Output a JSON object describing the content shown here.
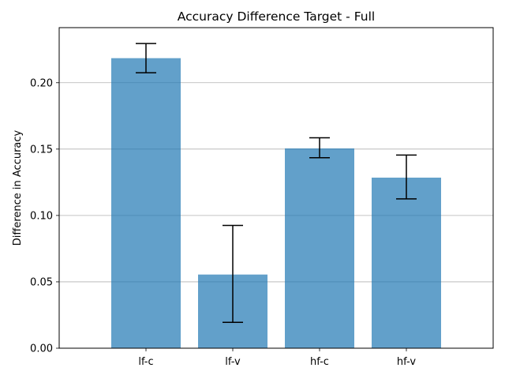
{
  "chart_data": {
    "type": "bar",
    "title": "Accuracy Difference Target - Full",
    "xlabel": "",
    "ylabel": "Difference in Accuracy",
    "categories": [
      "lf-c",
      "lf-v",
      "hf-c",
      "hf-v"
    ],
    "values": [
      0.2185,
      0.0555,
      0.1505,
      0.1285
    ],
    "error_low": [
      0.2075,
      0.0195,
      0.1435,
      0.1125
    ],
    "error_high": [
      0.2295,
      0.0925,
      0.1585,
      0.1455
    ],
    "ylim": [
      0,
      0.2415
    ],
    "yticks": [
      0.0,
      0.05,
      0.1,
      0.15,
      0.2
    ],
    "ytick_labels": [
      "0.00",
      "0.05",
      "0.10",
      "0.15",
      "0.20"
    ],
    "grid": "y",
    "bar_color": "#1f77b4",
    "bar_alpha": 0.7,
    "grid_color": "#b0b0b0"
  }
}
